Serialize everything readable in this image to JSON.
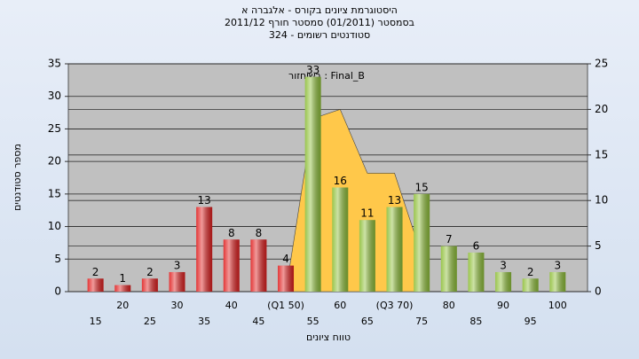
{
  "chart_data": {
    "type": "bar",
    "title": [
      "היסטוגרמת ציונים בקורס - אלגברה א",
      "בסמסטר (01/2011) סמסטר חורף 2011/12",
      "סטודנטים רשומים - 324"
    ],
    "annotation": "בשיחזור : Final_B",
    "ylabel": "מספר סטודנטים",
    "xlabel": "טווח ציונים",
    "categories": [
      "15",
      "20",
      "25",
      "30",
      "35",
      "40",
      "45",
      "(Q1 50)",
      "55",
      "60",
      "65",
      "(Q3 70)",
      "75",
      "80",
      "85",
      "90",
      "95",
      "100"
    ],
    "values": [
      2,
      1,
      2,
      3,
      13,
      8,
      8,
      4,
      33,
      16,
      11,
      13,
      15,
      7,
      6,
      3,
      2,
      3
    ],
    "colors": [
      "#e02020",
      "#e02020",
      "#e02020",
      "#e02020",
      "#e02020",
      "#e02020",
      "#e02020",
      "#e02020",
      "#8fbf3a",
      "#8fbf3a",
      "#8fbf3a",
      "#8fbf3a",
      "#8fbf3a",
      "#8fbf3a",
      "#8fbf3a",
      "#8fbf3a",
      "#8fbf3a",
      "#8fbf3a"
    ],
    "area": {
      "axis": "y2",
      "color": "#ffc84a",
      "values": [
        null,
        null,
        null,
        null,
        null,
        null,
        null,
        0,
        19,
        20,
        13,
        13,
        4,
        null,
        null,
        null,
        null,
        null
      ]
    },
    "ylim": [
      0,
      35
    ],
    "yticks": [
      0,
      5,
      10,
      15,
      20,
      25,
      30,
      35
    ],
    "y2lim": [
      0,
      25
    ],
    "y2ticks": [
      0,
      5,
      10,
      15,
      20,
      25
    ],
    "grid": true
  }
}
